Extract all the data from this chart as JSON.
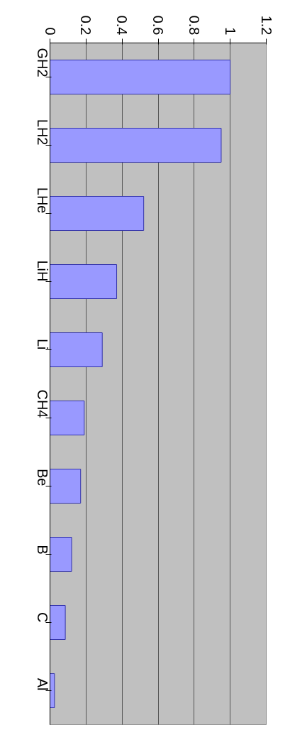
{
  "chart_data": {
    "type": "bar",
    "orientation": "horizontal",
    "categories": [
      "GH2",
      "LH2",
      "LHe",
      "LiH",
      "Li",
      "CH4",
      "Be",
      "B",
      "C",
      "Al"
    ],
    "values": [
      1.0,
      0.95,
      0.52,
      0.37,
      0.29,
      0.19,
      0.17,
      0.12,
      0.085,
      0.025
    ],
    "color": "#9999ff",
    "xlim": [
      0,
      1.2
    ],
    "xticks": [
      0,
      0.2,
      0.4,
      0.6,
      0.8,
      1,
      1.2
    ],
    "grid": "x"
  }
}
